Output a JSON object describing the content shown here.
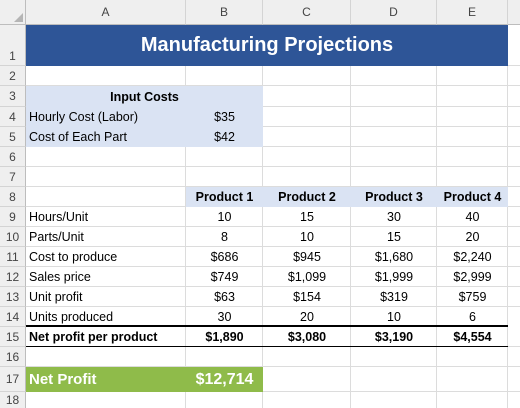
{
  "columns": [
    "A",
    "B",
    "C",
    "D",
    "E"
  ],
  "rows": [
    "1",
    "2",
    "3",
    "4",
    "5",
    "6",
    "7",
    "8",
    "9",
    "10",
    "11",
    "12",
    "13",
    "14",
    "15",
    "16",
    "17",
    "18"
  ],
  "title": "Manufacturing Projections",
  "input_costs": {
    "header": "Input Costs",
    "hourly_label": "Hourly Cost (Labor)",
    "hourly_value": "$35",
    "part_label": "Cost of Each Part",
    "part_value": "$42"
  },
  "products": [
    "Product 1",
    "Product 2",
    "Product 3",
    "Product 4"
  ],
  "table_rows": [
    {
      "label": "Hours/Unit",
      "values": [
        "10",
        "15",
        "30",
        "40"
      ]
    },
    {
      "label": "Parts/Unit",
      "values": [
        "8",
        "10",
        "15",
        "20"
      ]
    },
    {
      "label": "Cost to produce",
      "values": [
        "$686",
        "$945",
        "$1,680",
        "$2,240"
      ]
    },
    {
      "label": "Sales price",
      "values": [
        "$749",
        "$1,099",
        "$1,999",
        "$2,999"
      ]
    },
    {
      "label": "Unit profit",
      "values": [
        "$63",
        "$154",
        "$319",
        "$759"
      ]
    },
    {
      "label": "Units produced",
      "values": [
        "30",
        "20",
        "10",
        "6"
      ]
    }
  ],
  "net_per_product": {
    "label": "Net profit per product",
    "values": [
      "$1,890",
      "$3,080",
      "$3,190",
      "$4,554"
    ]
  },
  "net_profit": {
    "label": "Net Profit",
    "value": "$12,714"
  },
  "colors": {
    "title_band": "#2e5597",
    "input_fill": "#dae3f3",
    "net_profit_fill": "#8fbb4a"
  }
}
